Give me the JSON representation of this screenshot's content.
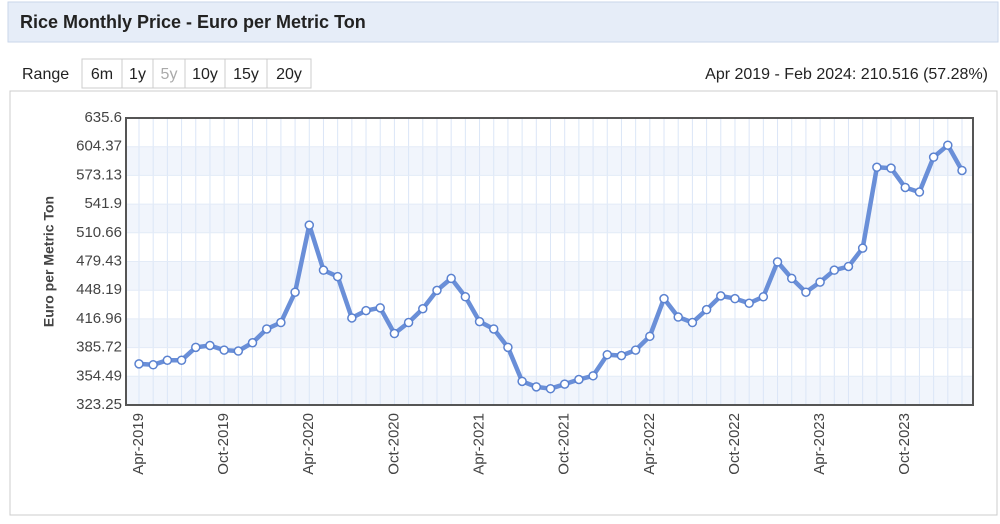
{
  "header": {
    "title": "Rice Monthly Price - Euro per Metric Ton"
  },
  "range": {
    "label": "Range",
    "buttons": [
      "6m",
      "1y",
      "5y",
      "10y",
      "15y",
      "20y"
    ],
    "selected": "5y"
  },
  "summary": "Apr 2019 - Feb 2024: 210.516 (57.28%)",
  "chart_data": {
    "type": "line",
    "y_label": "Euro per Metric Ton",
    "color": "#6a8fd8",
    "categories": [
      "Apr-2019",
      null,
      null,
      null,
      null,
      null,
      "Oct-2019",
      null,
      null,
      null,
      null,
      null,
      "Apr-2020",
      null,
      null,
      null,
      null,
      null,
      "Oct-2020",
      null,
      null,
      null,
      null,
      null,
      "Apr-2021",
      null,
      null,
      null,
      null,
      null,
      "Oct-2021",
      null,
      null,
      null,
      null,
      null,
      "Apr-2022",
      null,
      null,
      null,
      null,
      null,
      "Oct-2022",
      null,
      null,
      null,
      null,
      null,
      "Apr-2023",
      null,
      null,
      null,
      null,
      null,
      "Oct-2023",
      null,
      null,
      null,
      null
    ],
    "values": [
      368,
      367,
      372,
      372,
      386,
      388,
      383,
      382,
      391,
      406,
      413,
      446,
      519,
      470,
      463,
      418,
      426,
      429,
      401,
      413,
      428,
      448,
      461,
      441,
      414,
      406,
      386,
      349,
      343,
      341,
      346,
      351,
      355,
      378,
      377,
      383,
      398,
      439,
      419,
      413,
      427,
      442,
      439,
      434,
      441,
      479,
      461,
      446,
      457,
      470,
      474,
      494,
      582,
      581,
      560,
      555,
      593,
      606,
      578.5
    ],
    "ylim": [
      323.25,
      635.6
    ],
    "yticks": [
      323.25,
      354.49,
      385.72,
      416.96,
      448.19,
      479.43,
      510.66,
      541.9,
      573.13,
      604.37,
      635.6
    ],
    "grid": true
  }
}
